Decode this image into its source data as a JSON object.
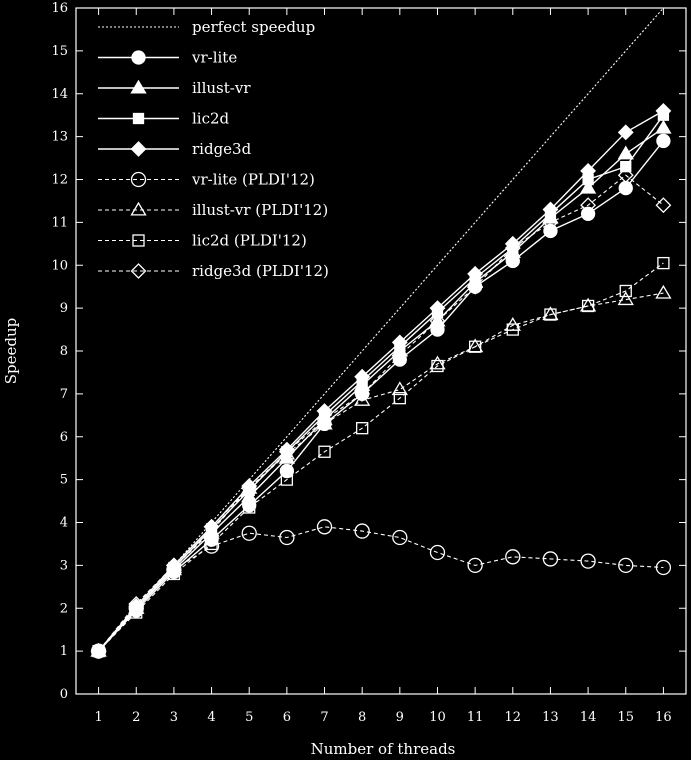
{
  "chart_data": {
    "type": "line",
    "title": "",
    "xlabel": "Number of threads",
    "ylabel": "Speedup",
    "xlim": [
      0.4,
      16.6
    ],
    "ylim": [
      0,
      16
    ],
    "x_ticks": [
      1,
      2,
      3,
      4,
      5,
      6,
      7,
      8,
      9,
      10,
      11,
      12,
      13,
      14,
      15,
      16
    ],
    "y_ticks": [
      0,
      1,
      2,
      3,
      4,
      5,
      6,
      7,
      8,
      9,
      10,
      11,
      12,
      13,
      14,
      15,
      16
    ],
    "grid": false,
    "legend_position": "top-left",
    "series": [
      {
        "name": "perfect speedup",
        "style": "dotted",
        "marker": "none",
        "x": [
          1,
          16
        ],
        "values": [
          1,
          16
        ]
      },
      {
        "name": "vr-lite",
        "style": "solid",
        "marker": "circle-filled",
        "x": [
          1,
          2,
          3,
          4,
          5,
          6,
          7,
          8,
          9,
          10,
          11,
          12,
          13,
          14,
          15,
          16
        ],
        "values": [
          1,
          1.95,
          2.85,
          3.6,
          4.4,
          5.2,
          6.3,
          7.0,
          7.8,
          8.5,
          9.5,
          10.1,
          10.8,
          11.2,
          11.8,
          12.9
        ]
      },
      {
        "name": "illust-vr",
        "style": "solid",
        "marker": "triangle-filled",
        "x": [
          1,
          2,
          3,
          4,
          5,
          6,
          7,
          8,
          9,
          10,
          11,
          12,
          13,
          14,
          15,
          16
        ],
        "values": [
          1,
          2.0,
          2.9,
          3.75,
          4.6,
          5.5,
          6.4,
          7.2,
          8.0,
          8.7,
          9.6,
          10.3,
          11.1,
          11.8,
          12.6,
          13.2
        ]
      },
      {
        "name": "lic2d",
        "style": "solid",
        "marker": "square-filled",
        "x": [
          1,
          2,
          3,
          4,
          5,
          6,
          7,
          8,
          9,
          10,
          11,
          12,
          13,
          14,
          15,
          16
        ],
        "values": [
          1,
          2.0,
          2.95,
          3.85,
          4.75,
          5.65,
          6.5,
          7.3,
          8.1,
          8.9,
          9.7,
          10.4,
          11.2,
          12.0,
          12.3,
          13.5
        ]
      },
      {
        "name": "ridge3d",
        "style": "solid",
        "marker": "diamond-filled",
        "x": [
          1,
          2,
          3,
          4,
          5,
          6,
          7,
          8,
          9,
          10,
          11,
          12,
          13,
          14,
          15,
          16
        ],
        "values": [
          1,
          2.05,
          3.0,
          3.9,
          4.85,
          5.7,
          6.6,
          7.4,
          8.2,
          9.0,
          9.8,
          10.5,
          11.3,
          12.2,
          13.1,
          13.6
        ]
      },
      {
        "name": "vr-lite (PLDI'12)",
        "style": "dashed",
        "marker": "circle-open",
        "x": [
          1,
          2,
          3,
          4,
          5,
          6,
          7,
          8,
          9,
          10,
          11,
          12,
          13,
          14,
          15,
          16
        ],
        "values": [
          1,
          2.0,
          2.9,
          3.45,
          3.75,
          3.65,
          3.9,
          3.8,
          3.65,
          3.3,
          3.0,
          3.2,
          3.15,
          3.1,
          3.0,
          2.95
        ]
      },
      {
        "name": "illust-vr (PLDI'12)",
        "style": "dashed",
        "marker": "triangle-open",
        "x": [
          1,
          2,
          3,
          4,
          5,
          6,
          7,
          8,
          9,
          10,
          11,
          12,
          13,
          14,
          15,
          16
        ],
        "values": [
          1,
          2.0,
          2.95,
          3.8,
          4.8,
          5.6,
          6.3,
          6.85,
          7.1,
          7.7,
          8.1,
          8.6,
          8.85,
          9.05,
          9.2,
          9.35
        ]
      },
      {
        "name": "lic2d (PLDI'12)",
        "style": "dashed",
        "marker": "square-open",
        "x": [
          1,
          2,
          3,
          4,
          5,
          6,
          7,
          8,
          9,
          10,
          11,
          12,
          13,
          14,
          15,
          16
        ],
        "values": [
          1,
          1.9,
          2.8,
          3.5,
          4.35,
          5.0,
          5.65,
          6.2,
          6.9,
          7.65,
          8.1,
          8.5,
          8.85,
          9.05,
          9.4,
          10.05
        ]
      },
      {
        "name": "ridge3d (PLDI'12)",
        "style": "dashed",
        "marker": "diamond-open",
        "x": [
          1,
          2,
          3,
          4,
          5,
          6,
          7,
          8,
          9,
          10,
          11,
          12,
          13,
          14,
          15,
          16
        ],
        "values": [
          1,
          2.1,
          3.0,
          3.9,
          4.8,
          5.65,
          6.4,
          7.0,
          7.9,
          8.7,
          9.5,
          10.4,
          11.0,
          11.4,
          12.1,
          11.4
        ]
      }
    ]
  },
  "colors": {
    "background": "#000000",
    "foreground": "#ffffff"
  }
}
